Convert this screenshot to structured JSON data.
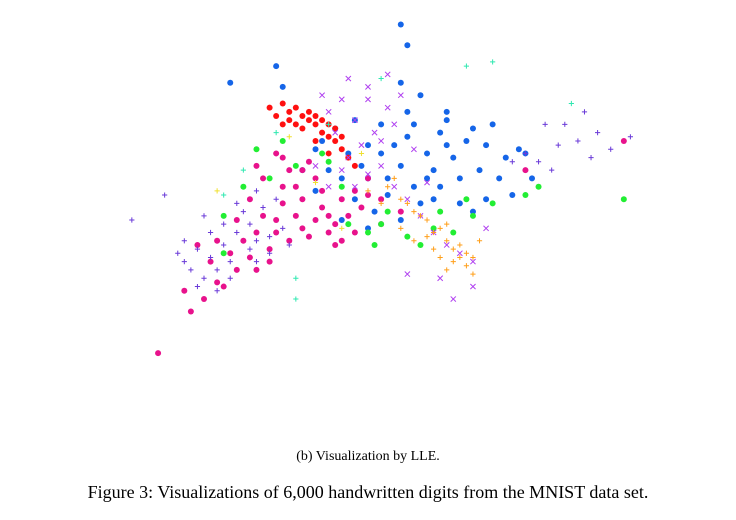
{
  "figure": {
    "subcaption": "(b)  Visualization by LLE.",
    "caption": "Figure 3: Visualizations of 6,000 handwritten digits from the MNIST data set."
  },
  "chart_data": {
    "type": "scatter",
    "title": "",
    "xlabel": "",
    "ylabel": "",
    "xlim": [
      0,
      1
    ],
    "ylim": [
      0,
      1
    ],
    "grid": false,
    "legend": "none",
    "axes_visible": false,
    "series": [
      {
        "color": "#1565e8",
        "marker": "circle",
        "points": [
          [
            0.55,
            0.97
          ],
          [
            0.56,
            0.92
          ],
          [
            0.36,
            0.87
          ],
          [
            0.37,
            0.82
          ],
          [
            0.29,
            0.83
          ],
          [
            0.55,
            0.83
          ],
          [
            0.62,
            0.76
          ],
          [
            0.69,
            0.73
          ],
          [
            0.73,
            0.67
          ],
          [
            0.71,
            0.65
          ],
          [
            0.75,
            0.6
          ],
          [
            0.72,
            0.56
          ],
          [
            0.68,
            0.55
          ],
          [
            0.66,
            0.52
          ],
          [
            0.64,
            0.54
          ],
          [
            0.6,
            0.62
          ],
          [
            0.56,
            0.7
          ],
          [
            0.52,
            0.73
          ],
          [
            0.5,
            0.68
          ],
          [
            0.47,
            0.66
          ],
          [
            0.5,
            0.6
          ],
          [
            0.53,
            0.56
          ],
          [
            0.57,
            0.58
          ],
          [
            0.61,
            0.58
          ],
          [
            0.63,
            0.65
          ],
          [
            0.59,
            0.66
          ],
          [
            0.55,
            0.63
          ],
          [
            0.52,
            0.66
          ],
          [
            0.57,
            0.73
          ],
          [
            0.61,
            0.71
          ],
          [
            0.65,
            0.69
          ],
          [
            0.67,
            0.62
          ],
          [
            0.7,
            0.6
          ],
          [
            0.58,
            0.54
          ],
          [
            0.55,
            0.5
          ],
          [
            0.51,
            0.52
          ],
          [
            0.48,
            0.55
          ],
          [
            0.46,
            0.6
          ],
          [
            0.49,
            0.63
          ],
          [
            0.53,
            0.6
          ],
          [
            0.62,
            0.68
          ],
          [
            0.64,
            0.6
          ],
          [
            0.6,
            0.55
          ],
          [
            0.54,
            0.68
          ],
          [
            0.44,
            0.62
          ],
          [
            0.43,
            0.69
          ],
          [
            0.58,
            0.8
          ],
          [
            0.46,
            0.5
          ],
          [
            0.5,
            0.48
          ],
          [
            0.42,
            0.57
          ],
          [
            0.4,
            0.62
          ],
          [
            0.68,
            0.68
          ],
          [
            0.66,
            0.72
          ],
          [
            0.74,
            0.66
          ],
          [
            0.62,
            0.74
          ],
          [
            0.45,
            0.72
          ],
          [
            0.48,
            0.74
          ],
          [
            0.42,
            0.67
          ],
          [
            0.56,
            0.76
          ],
          [
            0.59,
            0.6
          ]
        ]
      },
      {
        "color": "#ff1010",
        "marker": "circle",
        "points": [
          [
            0.35,
            0.77
          ],
          [
            0.37,
            0.78
          ],
          [
            0.38,
            0.76
          ],
          [
            0.39,
            0.77
          ],
          [
            0.4,
            0.75
          ],
          [
            0.41,
            0.74
          ],
          [
            0.42,
            0.73
          ],
          [
            0.43,
            0.71
          ],
          [
            0.44,
            0.7
          ],
          [
            0.45,
            0.69
          ],
          [
            0.46,
            0.67
          ],
          [
            0.4,
            0.72
          ],
          [
            0.42,
            0.69
          ],
          [
            0.44,
            0.66
          ],
          [
            0.36,
            0.75
          ],
          [
            0.38,
            0.74
          ],
          [
            0.47,
            0.65
          ],
          [
            0.48,
            0.63
          ],
          [
            0.41,
            0.76
          ],
          [
            0.43,
            0.74
          ],
          [
            0.45,
            0.72
          ],
          [
            0.39,
            0.73
          ],
          [
            0.46,
            0.7
          ],
          [
            0.44,
            0.73
          ],
          [
            0.42,
            0.75
          ],
          [
            0.37,
            0.73
          ]
        ]
      },
      {
        "color": "#e8128c",
        "marker": "circle",
        "points": [
          [
            0.18,
            0.18
          ],
          [
            0.23,
            0.28
          ],
          [
            0.25,
            0.31
          ],
          [
            0.27,
            0.35
          ],
          [
            0.28,
            0.34
          ],
          [
            0.3,
            0.38
          ],
          [
            0.32,
            0.41
          ],
          [
            0.33,
            0.38
          ],
          [
            0.35,
            0.43
          ],
          [
            0.36,
            0.47
          ],
          [
            0.38,
            0.45
          ],
          [
            0.4,
            0.48
          ],
          [
            0.42,
            0.5
          ],
          [
            0.43,
            0.53
          ],
          [
            0.44,
            0.51
          ],
          [
            0.46,
            0.55
          ],
          [
            0.48,
            0.57
          ],
          [
            0.5,
            0.56
          ],
          [
            0.52,
            0.55
          ],
          [
            0.45,
            0.49
          ],
          [
            0.41,
            0.46
          ],
          [
            0.39,
            0.51
          ],
          [
            0.37,
            0.54
          ],
          [
            0.34,
            0.51
          ],
          [
            0.33,
            0.47
          ],
          [
            0.37,
            0.58
          ],
          [
            0.4,
            0.55
          ],
          [
            0.43,
            0.57
          ],
          [
            0.47,
            0.51
          ],
          [
            0.49,
            0.53
          ],
          [
            0.35,
            0.4
          ],
          [
            0.31,
            0.45
          ],
          [
            0.29,
            0.42
          ],
          [
            0.32,
            0.55
          ],
          [
            0.38,
            0.62
          ],
          [
            0.42,
            0.6
          ],
          [
            0.36,
            0.5
          ],
          [
            0.39,
            0.58
          ],
          [
            0.44,
            0.47
          ],
          [
            0.46,
            0.45
          ],
          [
            0.34,
            0.6
          ],
          [
            0.37,
            0.65
          ],
          [
            0.41,
            0.64
          ],
          [
            0.3,
            0.5
          ],
          [
            0.26,
            0.4
          ],
          [
            0.22,
            0.33
          ],
          [
            0.24,
            0.44
          ],
          [
            0.74,
            0.62
          ],
          [
            0.89,
            0.69
          ],
          [
            0.5,
            0.6
          ],
          [
            0.55,
            0.52
          ],
          [
            0.52,
            0.49
          ],
          [
            0.48,
            0.47
          ],
          [
            0.45,
            0.44
          ],
          [
            0.27,
            0.45
          ],
          [
            0.33,
            0.63
          ],
          [
            0.36,
            0.66
          ],
          [
            0.4,
            0.62
          ]
        ]
      },
      {
        "color": "#22ee33",
        "marker": "circle",
        "points": [
          [
            0.28,
            0.42
          ],
          [
            0.28,
            0.51
          ],
          [
            0.33,
            0.67
          ],
          [
            0.35,
            0.6
          ],
          [
            0.39,
            0.63
          ],
          [
            0.44,
            0.64
          ],
          [
            0.46,
            0.58
          ],
          [
            0.5,
            0.47
          ],
          [
            0.51,
            0.44
          ],
          [
            0.53,
            0.52
          ],
          [
            0.56,
            0.46
          ],
          [
            0.6,
            0.48
          ],
          [
            0.63,
            0.47
          ],
          [
            0.66,
            0.51
          ],
          [
            0.69,
            0.54
          ],
          [
            0.74,
            0.56
          ],
          [
            0.76,
            0.58
          ],
          [
            0.89,
            0.55
          ],
          [
            0.31,
            0.58
          ],
          [
            0.37,
            0.69
          ],
          [
            0.43,
            0.66
          ],
          [
            0.47,
            0.49
          ],
          [
            0.52,
            0.49
          ],
          [
            0.58,
            0.44
          ],
          [
            0.61,
            0.52
          ],
          [
            0.65,
            0.55
          ]
        ]
      },
      {
        "color": "#b040f0",
        "marker": "x",
        "points": [
          [
            0.44,
            0.76
          ],
          [
            0.46,
            0.79
          ],
          [
            0.48,
            0.74
          ],
          [
            0.5,
            0.82
          ],
          [
            0.51,
            0.71
          ],
          [
            0.53,
            0.77
          ],
          [
            0.49,
            0.68
          ],
          [
            0.47,
            0.65
          ],
          [
            0.45,
            0.71
          ],
          [
            0.52,
            0.63
          ],
          [
            0.54,
            0.58
          ],
          [
            0.5,
            0.61
          ],
          [
            0.48,
            0.58
          ],
          [
            0.46,
            0.62
          ],
          [
            0.56,
            0.55
          ],
          [
            0.58,
            0.51
          ],
          [
            0.6,
            0.47
          ],
          [
            0.62,
            0.44
          ],
          [
            0.64,
            0.42
          ],
          [
            0.66,
            0.4
          ],
          [
            0.43,
            0.8
          ],
          [
            0.55,
            0.8
          ],
          [
            0.57,
            0.67
          ],
          [
            0.59,
            0.59
          ],
          [
            0.44,
            0.58
          ],
          [
            0.52,
            0.69
          ],
          [
            0.47,
            0.84
          ],
          [
            0.53,
            0.85
          ],
          [
            0.42,
            0.63
          ],
          [
            0.56,
            0.37
          ],
          [
            0.61,
            0.36
          ],
          [
            0.68,
            0.48
          ],
          [
            0.63,
            0.31
          ],
          [
            0.66,
            0.34
          ],
          [
            0.5,
            0.79
          ],
          [
            0.54,
            0.73
          ]
        ]
      },
      {
        "color": "#6a3ad8",
        "marker": "plus",
        "points": [
          [
            0.14,
            0.5
          ],
          [
            0.19,
            0.56
          ],
          [
            0.21,
            0.42
          ],
          [
            0.23,
            0.38
          ],
          [
            0.25,
            0.36
          ],
          [
            0.26,
            0.41
          ],
          [
            0.28,
            0.44
          ],
          [
            0.3,
            0.47
          ],
          [
            0.32,
            0.49
          ],
          [
            0.33,
            0.45
          ],
          [
            0.35,
            0.46
          ],
          [
            0.29,
            0.4
          ],
          [
            0.27,
            0.38
          ],
          [
            0.24,
            0.43
          ],
          [
            0.22,
            0.45
          ],
          [
            0.31,
            0.52
          ],
          [
            0.34,
            0.53
          ],
          [
            0.36,
            0.55
          ],
          [
            0.33,
            0.57
          ],
          [
            0.3,
            0.54
          ],
          [
            0.26,
            0.47
          ],
          [
            0.25,
            0.51
          ],
          [
            0.28,
            0.49
          ],
          [
            0.32,
            0.43
          ],
          [
            0.35,
            0.42
          ],
          [
            0.38,
            0.44
          ],
          [
            0.24,
            0.34
          ],
          [
            0.22,
            0.4
          ],
          [
            0.27,
            0.33
          ],
          [
            0.29,
            0.36
          ],
          [
            0.33,
            0.4
          ],
          [
            0.37,
            0.48
          ],
          [
            0.8,
            0.73
          ],
          [
            0.85,
            0.71
          ],
          [
            0.87,
            0.67
          ],
          [
            0.9,
            0.7
          ],
          [
            0.83,
            0.76
          ],
          [
            0.74,
            0.66
          ],
          [
            0.78,
            0.62
          ],
          [
            0.79,
            0.68
          ],
          [
            0.77,
            0.73
          ],
          [
            0.72,
            0.64
          ],
          [
            0.76,
            0.64
          ],
          [
            0.82,
            0.69
          ],
          [
            0.84,
            0.65
          ]
        ]
      },
      {
        "color": "#ff9f1a",
        "marker": "plus",
        "points": [
          [
            0.53,
            0.58
          ],
          [
            0.55,
            0.55
          ],
          [
            0.57,
            0.52
          ],
          [
            0.59,
            0.5
          ],
          [
            0.6,
            0.47
          ],
          [
            0.62,
            0.45
          ],
          [
            0.63,
            0.43
          ],
          [
            0.64,
            0.41
          ],
          [
            0.65,
            0.39
          ],
          [
            0.66,
            0.37
          ],
          [
            0.56,
            0.54
          ],
          [
            0.58,
            0.51
          ],
          [
            0.61,
            0.48
          ],
          [
            0.62,
            0.49
          ],
          [
            0.64,
            0.44
          ],
          [
            0.6,
            0.43
          ],
          [
            0.63,
            0.4
          ],
          [
            0.65,
            0.42
          ],
          [
            0.67,
            0.45
          ],
          [
            0.55,
            0.48
          ],
          [
            0.5,
            0.57
          ],
          [
            0.52,
            0.54
          ],
          [
            0.54,
            0.6
          ],
          [
            0.59,
            0.46
          ],
          [
            0.61,
            0.41
          ],
          [
            0.66,
            0.41
          ],
          [
            0.62,
            0.38
          ],
          [
            0.57,
            0.45
          ]
        ]
      },
      {
        "color": "#2ee8b0",
        "marker": "plus",
        "points": [
          [
            0.65,
            0.87
          ],
          [
            0.69,
            0.88
          ],
          [
            0.81,
            0.78
          ],
          [
            0.39,
            0.31
          ],
          [
            0.39,
            0.36
          ],
          [
            0.52,
            0.84
          ],
          [
            0.44,
            0.73
          ],
          [
            0.36,
            0.71
          ],
          [
            0.31,
            0.62
          ],
          [
            0.28,
            0.56
          ]
        ]
      },
      {
        "color": "#f0e030",
        "marker": "plus",
        "points": [
          [
            0.27,
            0.57
          ],
          [
            0.38,
            0.7
          ],
          [
            0.42,
            0.59
          ],
          [
            0.46,
            0.48
          ],
          [
            0.49,
            0.66
          ]
        ]
      }
    ]
  }
}
